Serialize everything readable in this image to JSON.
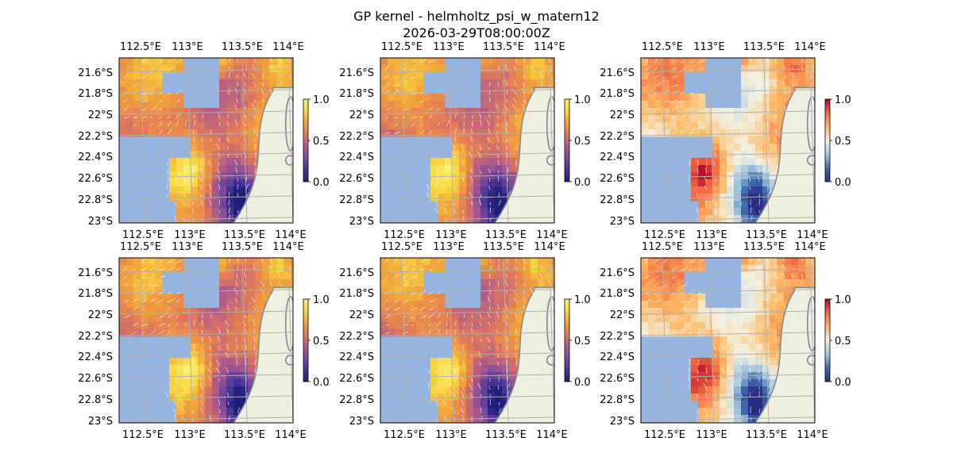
{
  "figure": {
    "title_line1": "GP kernel - helmholtz_psi_w_matern12",
    "title_line2": "2026-03-29T08:00:00Z"
  },
  "axes": {
    "lon_ticks": [
      "112.5°E",
      "113°E",
      "113.5°E",
      "114°E"
    ],
    "lat_ticks": [
      "21.6°S",
      "21.8°S",
      "22°S",
      "22.2°S",
      "22.4°S",
      "22.6°S",
      "22.8°S",
      "23°S"
    ],
    "colorbar_ticks": [
      "0.0",
      "0.5",
      "1.0"
    ]
  },
  "colors": {
    "ocean_masked": "#95b5e0",
    "land": "#efefdf",
    "coast_outline": "#7e8a92",
    "gridline": "#b0b0b0",
    "quiver": "#ffffff",
    "colormap_a": [
      "#1f1f7a",
      "#4a3596",
      "#7a4a9c",
      "#b05b8a",
      "#e27a58",
      "#f2a23a",
      "#f9d740",
      "#f7f27a"
    ],
    "colormap_b": [
      "#2a2c82",
      "#3f6cb0",
      "#a7c8df",
      "#f2f1e1",
      "#fdb863",
      "#f46d43",
      "#b3002a"
    ]
  },
  "panels": [
    {
      "id": 1,
      "row": 1,
      "col": 1,
      "colormap": "a"
    },
    {
      "id": 2,
      "row": 1,
      "col": 2,
      "colormap": "a"
    },
    {
      "id": 3,
      "row": 1,
      "col": 3,
      "colormap": "b"
    },
    {
      "id": 4,
      "row": 2,
      "col": 1,
      "colormap": "a"
    },
    {
      "id": 5,
      "row": 2,
      "col": 2,
      "colormap": "a"
    },
    {
      "id": 6,
      "row": 2,
      "col": 3,
      "colormap": "b"
    }
  ]
}
